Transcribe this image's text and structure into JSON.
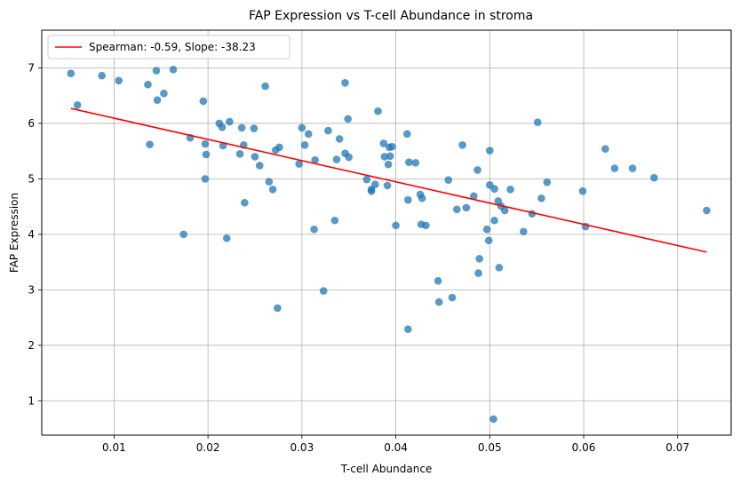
{
  "chart_data": {
    "type": "scatter",
    "title": "FAP Expression vs T-cell Abundance in stroma",
    "xlabel": "T-cell Abundance",
    "ylabel": "FAP Expression",
    "xlim": [
      0.0023,
      0.0757
    ],
    "ylim": [
      0.38,
      7.68
    ],
    "xticks": [
      0.01,
      0.02,
      0.03,
      0.04,
      0.05,
      0.06,
      0.07
    ],
    "xtick_labels": [
      "0.01",
      "0.02",
      "0.03",
      "0.04",
      "0.05",
      "0.06",
      "0.07"
    ],
    "yticks": [
      1,
      2,
      3,
      4,
      5,
      6,
      7
    ],
    "ytick_labels": [
      "1",
      "2",
      "3",
      "4",
      "5",
      "6",
      "7"
    ],
    "grid": true,
    "legend_position": "top-left",
    "point_color": "#1f77b4",
    "line_color": "#ff0000",
    "series": [
      {
        "type": "scatter",
        "points": [
          [
            0.0054,
            6.9
          ],
          [
            0.0061,
            6.33
          ],
          [
            0.0087,
            6.86
          ],
          [
            0.0105,
            6.77
          ],
          [
            0.0136,
            6.7
          ],
          [
            0.0138,
            5.62
          ],
          [
            0.0145,
            6.95
          ],
          [
            0.0146,
            6.42
          ],
          [
            0.0153,
            6.54
          ],
          [
            0.0163,
            6.97
          ],
          [
            0.0174,
            4.0
          ],
          [
            0.0181,
            5.74
          ],
          [
            0.0195,
            6.4
          ],
          [
            0.0197,
            5.63
          ],
          [
            0.0197,
            5.0
          ],
          [
            0.0198,
            5.44
          ],
          [
            0.0212,
            6.0
          ],
          [
            0.0215,
            5.93
          ],
          [
            0.0216,
            5.6
          ],
          [
            0.022,
            3.93
          ],
          [
            0.0223,
            6.03
          ],
          [
            0.0234,
            5.45
          ],
          [
            0.0236,
            5.92
          ],
          [
            0.0238,
            5.61
          ],
          [
            0.0239,
            4.57
          ],
          [
            0.0249,
            5.91
          ],
          [
            0.025,
            5.4
          ],
          [
            0.0255,
            5.24
          ],
          [
            0.0261,
            6.67
          ],
          [
            0.0265,
            4.95
          ],
          [
            0.0269,
            4.81
          ],
          [
            0.0272,
            5.52
          ],
          [
            0.0274,
            2.67
          ],
          [
            0.0276,
            5.57
          ],
          [
            0.0297,
            5.27
          ],
          [
            0.03,
            5.92
          ],
          [
            0.0303,
            5.61
          ],
          [
            0.0307,
            5.81
          ],
          [
            0.0313,
            4.09
          ],
          [
            0.0314,
            5.34
          ],
          [
            0.0323,
            2.98
          ],
          [
            0.0328,
            5.87
          ],
          [
            0.0335,
            4.25
          ],
          [
            0.0337,
            5.35
          ],
          [
            0.034,
            5.72
          ],
          [
            0.0346,
            6.73
          ],
          [
            0.0346,
            5.46
          ],
          [
            0.0349,
            6.08
          ],
          [
            0.035,
            5.39
          ],
          [
            0.0369,
            4.99
          ],
          [
            0.0374,
            4.78
          ],
          [
            0.0374,
            4.81
          ],
          [
            0.0378,
            4.9
          ],
          [
            0.0381,
            6.22
          ],
          [
            0.0387,
            5.64
          ],
          [
            0.0388,
            5.4
          ],
          [
            0.0391,
            4.88
          ],
          [
            0.0392,
            5.26
          ],
          [
            0.0393,
            5.57
          ],
          [
            0.0394,
            5.41
          ],
          [
            0.0396,
            5.58
          ],
          [
            0.04,
            4.16
          ],
          [
            0.0412,
            5.81
          ],
          [
            0.0413,
            4.62
          ],
          [
            0.0413,
            2.29
          ],
          [
            0.0414,
            5.3
          ],
          [
            0.0421,
            5.29
          ],
          [
            0.0426,
            4.72
          ],
          [
            0.0427,
            4.18
          ],
          [
            0.0428,
            4.65
          ],
          [
            0.0432,
            4.16
          ],
          [
            0.0445,
            3.16
          ],
          [
            0.0446,
            2.78
          ],
          [
            0.0456,
            4.98
          ],
          [
            0.046,
            2.86
          ],
          [
            0.0465,
            4.45
          ],
          [
            0.0471,
            5.61
          ],
          [
            0.0475,
            4.48
          ],
          [
            0.0483,
            4.69
          ],
          [
            0.0487,
            5.16
          ],
          [
            0.0488,
            3.3
          ],
          [
            0.0489,
            3.56
          ],
          [
            0.0497,
            4.09
          ],
          [
            0.0499,
            3.89
          ],
          [
            0.05,
            5.51
          ],
          [
            0.05,
            4.89
          ],
          [
            0.0504,
            0.67
          ],
          [
            0.0505,
            4.82
          ],
          [
            0.0505,
            4.25
          ],
          [
            0.0509,
            4.6
          ],
          [
            0.051,
            3.4
          ],
          [
            0.0512,
            4.51
          ],
          [
            0.0516,
            4.43
          ],
          [
            0.0522,
            4.81
          ],
          [
            0.0536,
            4.05
          ],
          [
            0.0545,
            4.37
          ],
          [
            0.0551,
            6.02
          ],
          [
            0.0555,
            4.65
          ],
          [
            0.0561,
            4.94
          ],
          [
            0.0599,
            4.78
          ],
          [
            0.0602,
            4.14
          ],
          [
            0.0623,
            5.54
          ],
          [
            0.0633,
            5.19
          ],
          [
            0.0652,
            5.19
          ],
          [
            0.0675,
            5.02
          ],
          [
            0.0731,
            4.43
          ]
        ]
      },
      {
        "type": "line",
        "name": "Spearman: -0.59, Slope: -38.23",
        "x": [
          0.0054,
          0.0731
        ],
        "y": [
          6.27,
          3.68
        ]
      }
    ]
  }
}
